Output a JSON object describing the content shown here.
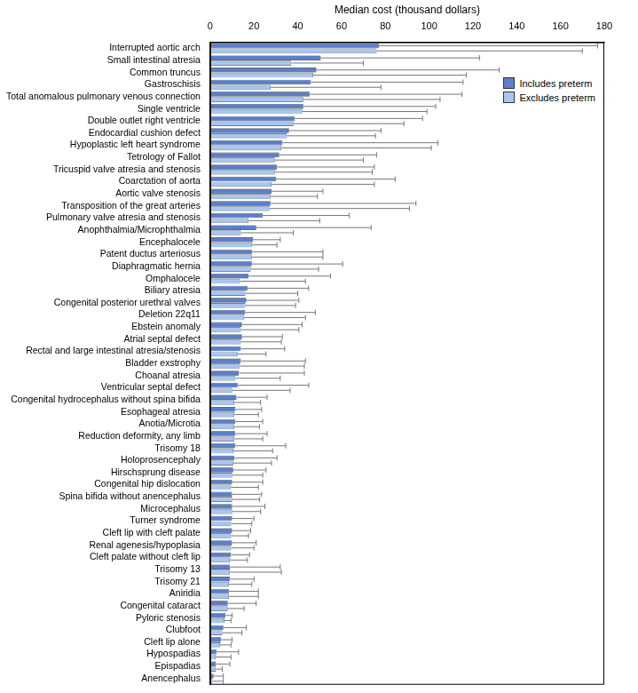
{
  "chart_data": {
    "type": "bar",
    "orientation": "horizontal",
    "xlabel": "Median cost (thousand dollars)",
    "xlim": [
      0,
      180
    ],
    "xticks": [
      0,
      20,
      40,
      60,
      80,
      100,
      120,
      140,
      160,
      180
    ],
    "grid": false,
    "legend": "top right",
    "categories": [
      "Interrupted aortic arch",
      "Small intestinal atresia",
      "Common truncus",
      "Gastroschisis",
      "Total anomalous pulmonary venous connection",
      "Single ventricle",
      "Double outlet right ventricle",
      "Endocardial cushion defect",
      "Hypoplastic left heart syndrome",
      "Tetrology of Fallot",
      "Tricuspid valve atresia and stenosis",
      "Coarctation of aorta",
      "Aortic valve stenosis",
      "Transposition of the great arteries",
      "Pulmonary valve atresia and stenosis",
      "Anophthalmia/Microphthalmia",
      "Encephalocele",
      "Patent ductus arteriosus",
      "Diaphragmatic hernia",
      "Omphalocele",
      "Biliary atresia",
      "Congenital posterior urethral valves",
      "Deletion 22q11",
      "Ebstein anomaly",
      "Atrial septal defect",
      "Rectal and large intestinal atresia/stenosis",
      "Bladder exstrophy",
      "Choanal atresia",
      "Ventricular septal defect",
      "Congenital hydrocephalus without spina bifida",
      "Esophageal atresia",
      "Anotia/Microtia",
      "Reduction deformity, any limb",
      "Trisomy 18",
      "Holoprosencephaly",
      "Hirschsprung disease",
      "Congenital hip dislocation",
      "Spina bifida without anencephalus",
      "Microcephalus",
      "Turner syndrome",
      "Cleft lip with cleft palate",
      "Renal agenesis/hypoplasia",
      "Cleft palate without cleft lip",
      "Trisomy 13",
      "Trisomy 21",
      "Aniridia",
      "Congenital cataract",
      "Pyloric stenosis",
      "Clubfoot",
      "Cleft lip alone",
      "Hypospadias",
      "Epispadias",
      "Anencephalus"
    ],
    "series": [
      {
        "name": "Includes preterm",
        "color": "#5b7fc9",
        "values": [
          77,
          50.5,
          48.5,
          46,
          45.5,
          42.5,
          38.5,
          36,
          33,
          31.5,
          30.5,
          30,
          28,
          27.5,
          24,
          21,
          19.5,
          19,
          19,
          17.5,
          17,
          16.5,
          16,
          14.5,
          14.5,
          14,
          14,
          13,
          12.5,
          12,
          11.5,
          11.5,
          11.5,
          11.5,
          11,
          10.5,
          10,
          10,
          10,
          10,
          10,
          10,
          9.5,
          9,
          9,
          8.5,
          8,
          7,
          6,
          5,
          3,
          2.5,
          1.5
        ],
        "error_upper": [
          177,
          123,
          132,
          115.5,
          115,
          103,
          97,
          78,
          104,
          76,
          75,
          84.5,
          51.5,
          94,
          63.5,
          73.5,
          32,
          51.5,
          60.5,
          55,
          45,
          40.5,
          48,
          42,
          33,
          34,
          43.5,
          43,
          45,
          26,
          23.5,
          24,
          26,
          34.5,
          30.5,
          25.5,
          24,
          23.5,
          25,
          20,
          18.5,
          21,
          18,
          32,
          20,
          22,
          21,
          10,
          16.5,
          10,
          13,
          9,
          6
        ]
      },
      {
        "name": "Excludes preterm",
        "color": "#a9c6ef",
        "values": [
          76,
          37,
          47,
          27.5,
          42.5,
          42,
          38,
          35,
          32.5,
          29.5,
          29.5,
          28,
          27.5,
          27,
          17.5,
          14,
          19,
          19,
          18.5,
          13.5,
          16,
          16,
          15.5,
          14,
          14,
          12.5,
          13.5,
          11.5,
          10,
          11,
          11,
          11,
          11,
          10.5,
          10.5,
          10,
          9.5,
          10,
          10,
          9.5,
          9.5,
          9.5,
          9,
          9,
          8.5,
          8.5,
          8,
          6.5,
          5.5,
          4.5,
          2.5,
          2.5,
          1
        ],
        "error_upper": [
          170,
          70,
          117,
          78,
          105,
          99,
          88.5,
          75.5,
          101,
          70,
          74,
          75,
          49,
          91,
          50,
          38,
          30.5,
          51.5,
          49.5,
          43.5,
          40,
          39,
          43.5,
          40.5,
          32.5,
          25.5,
          43,
          32,
          36.5,
          23,
          22,
          22.5,
          24,
          28.5,
          28,
          24,
          22,
          22.5,
          23,
          19,
          17.5,
          20,
          17,
          32.5,
          19,
          22,
          15.5,
          9.5,
          14.5,
          9.5,
          9.5,
          5.5,
          6
        ]
      }
    ]
  }
}
